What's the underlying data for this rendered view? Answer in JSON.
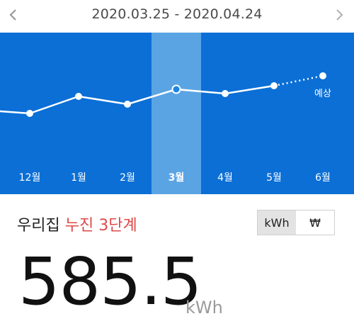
{
  "header": {
    "date_range": "2020.03.25 - 2020.04.24",
    "prev_icon": "chevron-left-icon",
    "next_icon": "chevron-right-icon"
  },
  "chart_data": {
    "type": "line",
    "categories": [
      "12월",
      "1월",
      "2월",
      "3월",
      "4월",
      "5월",
      "6월"
    ],
    "selected_category": "3월",
    "forecast_label": "예상",
    "colors": {
      "background": "#0b6fd6",
      "highlight": "#6aaee6",
      "line": "#ffffff"
    }
  },
  "summary": {
    "prefix": "우리집",
    "status": "누진 3단계",
    "value": "585.5",
    "unit": "kWh",
    "status_color": "#e04848"
  },
  "unit_toggle": {
    "options": [
      "kWh",
      "₩"
    ],
    "selected": "kWh"
  }
}
